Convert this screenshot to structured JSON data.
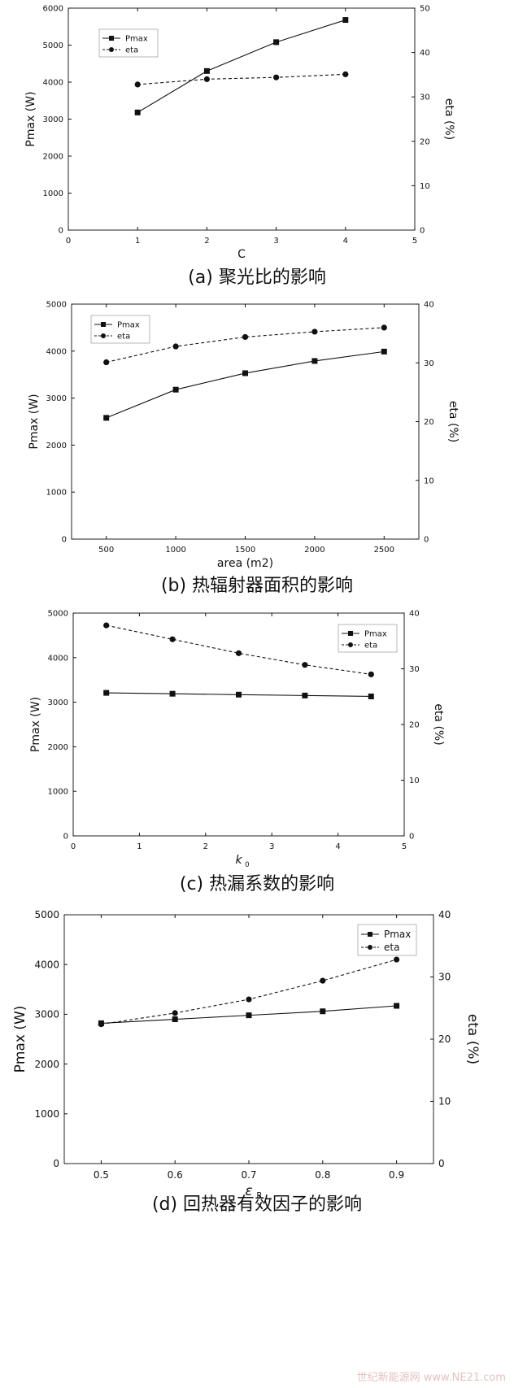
{
  "chart_data": [
    {
      "type": "line",
      "caption": "(a) 聚光比的影响",
      "xlabel": "C",
      "ylabel": "Pmax (W)",
      "y2label": "eta (%)",
      "xlim": [
        0,
        5
      ],
      "ylim": [
        0,
        6000
      ],
      "y2lim": [
        0,
        50
      ],
      "xticks": [
        0,
        1,
        2,
        3,
        4,
        5
      ],
      "yticks": [
        0,
        1000,
        2000,
        3000,
        4000,
        5000,
        6000
      ],
      "y2ticks": [
        0,
        10,
        20,
        30,
        40,
        50
      ],
      "grid": false,
      "legend_position": "top-left",
      "series": [
        {
          "name": "Pmax",
          "axis": "left",
          "style": "solid",
          "marker": "square",
          "x": [
            1,
            2,
            3,
            4
          ],
          "values": [
            3180,
            4300,
            5080,
            5680
          ]
        },
        {
          "name": "eta",
          "axis": "right",
          "style": "dashed",
          "marker": "circle",
          "x": [
            1,
            2,
            3,
            4
          ],
          "values": [
            32.8,
            34.0,
            34.4,
            35.1
          ]
        }
      ]
    },
    {
      "type": "line",
      "caption": "(b) 热辐射器面积的影响",
      "xlabel": "area (m2)",
      "ylabel": "Pmax (W)",
      "y2label": "eta (%)",
      "xlim": [
        250,
        2750
      ],
      "ylim": [
        0,
        5000
      ],
      "y2lim": [
        0,
        40
      ],
      "xticks": [
        500,
        1000,
        1500,
        2000,
        2500
      ],
      "yticks": [
        0,
        1000,
        2000,
        3000,
        4000,
        5000
      ],
      "y2ticks": [
        0,
        10,
        20,
        30,
        40
      ],
      "grid": false,
      "legend_position": "top-left",
      "series": [
        {
          "name": "Pmax",
          "axis": "left",
          "style": "solid",
          "marker": "square",
          "x": [
            500,
            1000,
            1500,
            2000,
            2500
          ],
          "values": [
            2580,
            3180,
            3530,
            3790,
            3990
          ]
        },
        {
          "name": "eta",
          "axis": "right",
          "style": "dashed",
          "marker": "circle",
          "x": [
            500,
            1000,
            1500,
            2000,
            2500
          ],
          "values": [
            30.1,
            32.8,
            34.4,
            35.3,
            36.0
          ]
        }
      ]
    },
    {
      "type": "line",
      "caption": "(c) 热漏系数的影响",
      "xlabel": "k",
      "xlabel_sub": "0",
      "ylabel": "Pmax (W)",
      "y2label": "eta (%)",
      "xlim": [
        0,
        5
      ],
      "ylim": [
        0,
        5000
      ],
      "y2lim": [
        0,
        40
      ],
      "xticks": [
        0,
        1,
        2,
        3,
        4,
        5
      ],
      "yticks": [
        0,
        1000,
        2000,
        3000,
        4000,
        5000
      ],
      "y2ticks": [
        0,
        10,
        20,
        30,
        40
      ],
      "grid": false,
      "legend_position": "top-right",
      "series": [
        {
          "name": "Pmax",
          "axis": "left",
          "style": "solid",
          "marker": "square",
          "x": [
            0.5,
            1.5,
            2.5,
            3.5,
            4.5
          ],
          "values": [
            3210,
            3190,
            3170,
            3150,
            3130
          ]
        },
        {
          "name": "eta",
          "axis": "right",
          "style": "dashed",
          "marker": "circle",
          "x": [
            0.5,
            1.5,
            2.5,
            3.5,
            4.5
          ],
          "values": [
            37.8,
            35.3,
            32.8,
            30.7,
            29.0
          ]
        }
      ]
    },
    {
      "type": "line",
      "caption": "(d) 回热器有效因子的影响",
      "xlabel": "ε",
      "xlabel_sub": "R",
      "ylabel": "Pmax (W)",
      "y2label": "eta (%)",
      "xlim": [
        0.45,
        0.95
      ],
      "ylim": [
        0,
        5000
      ],
      "y2lim": [
        0,
        40
      ],
      "xticks": [
        0.5,
        0.6,
        0.7,
        0.8,
        0.9
      ],
      "yticks": [
        0,
        1000,
        2000,
        3000,
        4000,
        5000
      ],
      "y2ticks": [
        0,
        10,
        20,
        30,
        40
      ],
      "grid": false,
      "legend_position": "top-right",
      "series": [
        {
          "name": "Pmax",
          "axis": "left",
          "style": "solid",
          "marker": "square",
          "x": [
            0.5,
            0.6,
            0.7,
            0.8,
            0.9
          ],
          "values": [
            2820,
            2900,
            2980,
            3060,
            3170
          ]
        },
        {
          "name": "eta",
          "axis": "right",
          "style": "dashed",
          "marker": "circle",
          "x": [
            0.5,
            0.6,
            0.7,
            0.8,
            0.9
          ],
          "values": [
            22.4,
            24.2,
            26.4,
            29.4,
            32.8
          ]
        }
      ]
    }
  ],
  "watermark": "世纪新能源网 www.NE21.com",
  "colors": {
    "ink": "#111111",
    "frame": "#222222"
  }
}
